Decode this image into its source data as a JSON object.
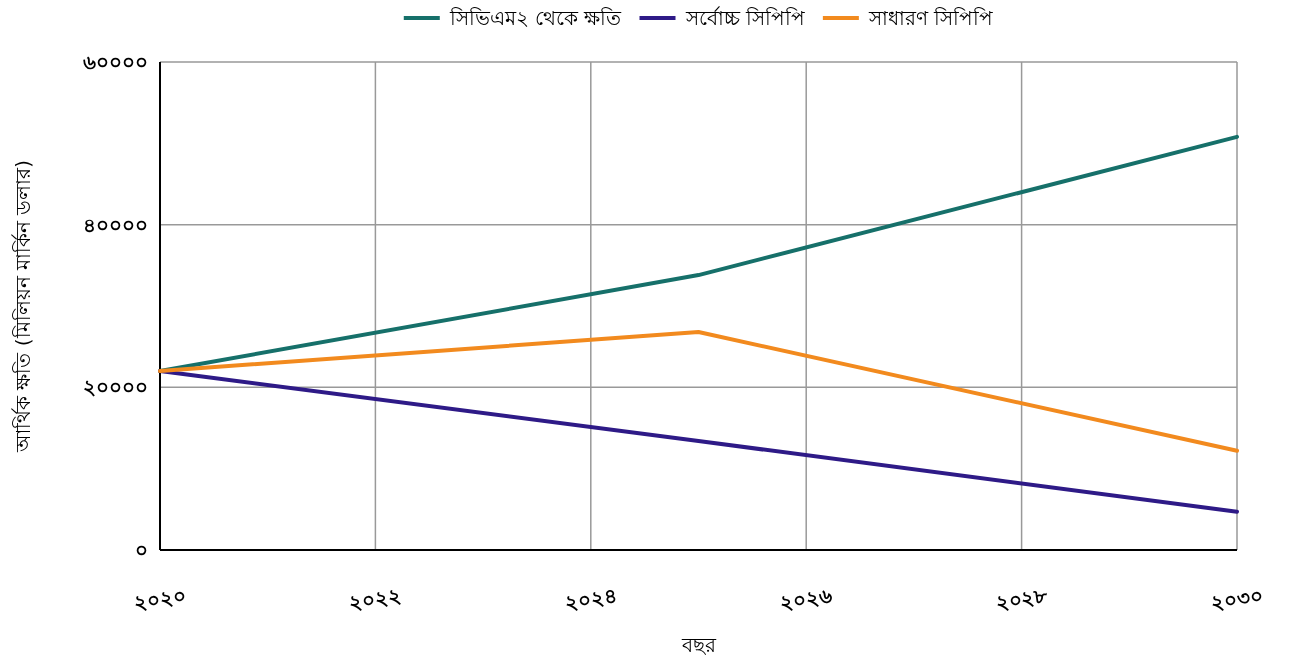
{
  "chart_data": {
    "type": "line",
    "xlabel": "বছর",
    "ylabel": "আর্থিক ক্ষতি (মিলিয়ন মার্কিন ডলার)",
    "xlim": [
      2020,
      2030
    ],
    "xticks": [
      {
        "value": 2020,
        "label": "২০২০"
      },
      {
        "value": 2022,
        "label": "২০২২"
      },
      {
        "value": 2024,
        "label": "২০২৪"
      },
      {
        "value": 2026,
        "label": "২০২৬"
      },
      {
        "value": 2028,
        "label": "২০২৮"
      },
      {
        "value": 2030,
        "label": "২০৩০"
      }
    ],
    "ylim": [
      0,
      60000
    ],
    "yticks": [
      {
        "value": 0,
        "label": "০"
      },
      {
        "value": 20000,
        "label": "২০০০০"
      },
      {
        "value": 40000,
        "label": "৪০০০০"
      },
      {
        "value": 60000,
        "label": "৬০০০০"
      }
    ],
    "grid": true,
    "legend": "top",
    "marker": "none",
    "line_style": "solid",
    "series": [
      {
        "name": "সিভিএম২ থেকে ক্ষতি",
        "color": "#16706a",
        "x": [
          2020,
          2025,
          2030
        ],
        "values": [
          22000,
          33800,
          50800
        ]
      },
      {
        "name": "সর্বোচ্চ সিপিপি",
        "color": "#2e1a87",
        "x": [
          2020,
          2025,
          2030
        ],
        "values": [
          22000,
          13400,
          4700
        ]
      },
      {
        "name": "সাধারণ সিপিপি",
        "color": "#f28a1e",
        "x": [
          2020,
          2025,
          2030
        ],
        "values": [
          22000,
          26800,
          12200
        ]
      }
    ]
  }
}
